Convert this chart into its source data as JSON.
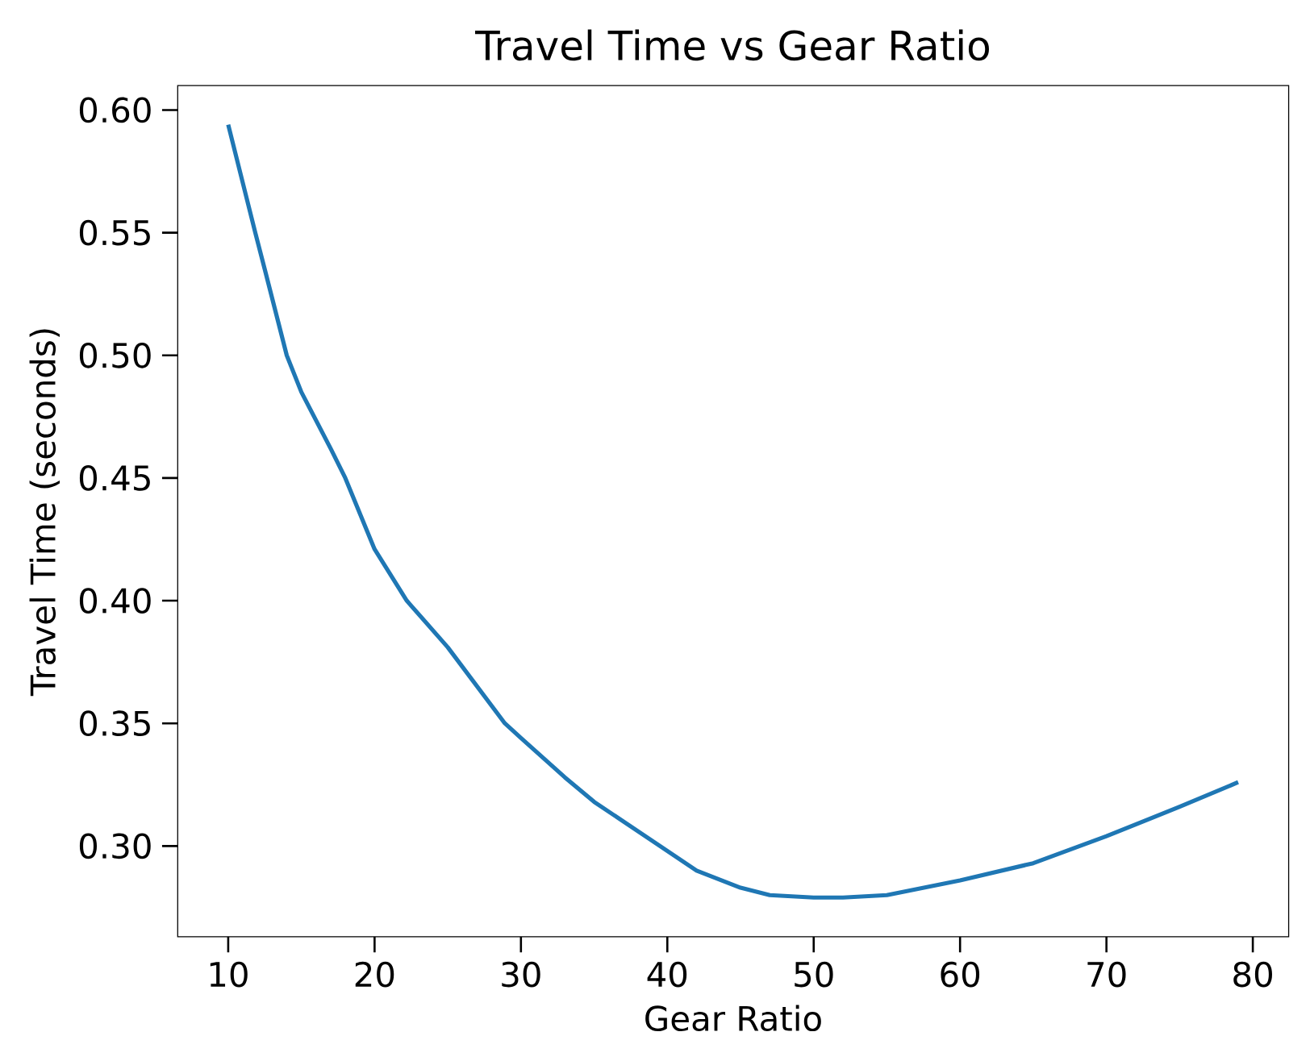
{
  "chart_data": {
    "type": "line",
    "title": "Travel Time vs Gear Ratio",
    "xlabel": "Gear Ratio",
    "ylabel": "Travel Time (seconds)",
    "xlim": [
      6.55,
      82.45
    ],
    "ylim": [
      0.263,
      0.61
    ],
    "xticks": [
      10,
      20,
      30,
      40,
      50,
      60,
      70,
      80
    ],
    "yticks": [
      {
        "value": 0.3,
        "label": "0.30"
      },
      {
        "value": 0.35,
        "label": "0.35"
      },
      {
        "value": 0.4,
        "label": "0.40"
      },
      {
        "value": 0.45,
        "label": "0.45"
      },
      {
        "value": 0.5,
        "label": "0.50"
      },
      {
        "value": 0.55,
        "label": "0.55"
      },
      {
        "value": 0.6,
        "label": "0.60"
      }
    ],
    "grid": false,
    "marker": "none",
    "line_style": "solid",
    "series": [
      {
        "color": "#1f77b4",
        "x": [
          10,
          11.85,
          12.5,
          14,
          15,
          17,
          18,
          20,
          22.2,
          25,
          28.9,
          30,
          33,
          35,
          39.5,
          42,
          45,
          47,
          50,
          52,
          55,
          60,
          65,
          70,
          75,
          79
        ],
        "values": [
          0.594,
          0.55,
          0.535,
          0.5,
          0.485,
          0.462,
          0.45,
          0.421,
          0.4,
          0.381,
          0.35,
          0.344,
          0.328,
          0.318,
          0.3,
          0.29,
          0.283,
          0.28,
          0.279,
          0.279,
          0.28,
          0.286,
          0.293,
          0.304,
          0.316,
          0.326
        ]
      }
    ]
  }
}
